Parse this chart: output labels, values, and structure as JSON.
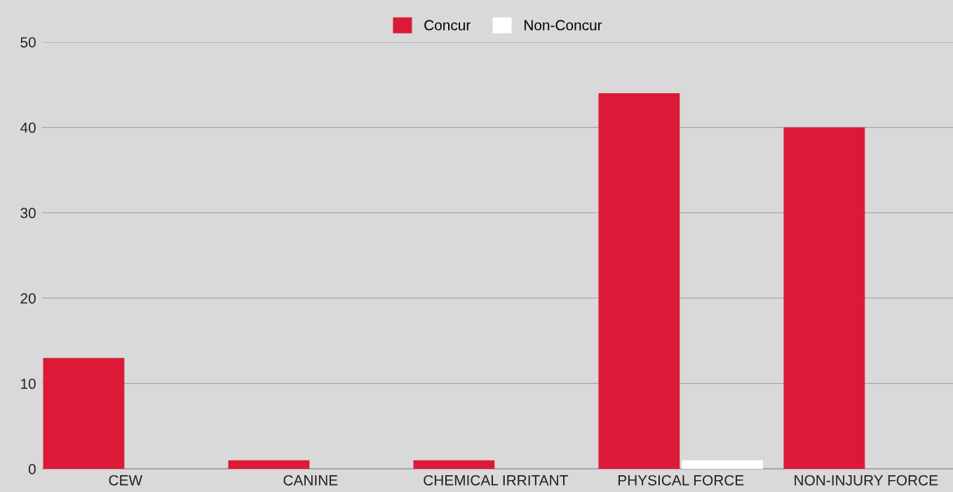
{
  "chart_data": {
    "type": "bar",
    "categories": [
      "CEW",
      "CANINE",
      "CHEMICAL IRRITANT",
      "PHYSICAL FORCE",
      "NON-INJURY FORCE"
    ],
    "series": [
      {
        "name": "Concur",
        "color": "#dc1a37",
        "values": [
          13,
          1,
          1,
          44,
          40
        ]
      },
      {
        "name": "Non-Concur",
        "color": "#ffffff",
        "values": [
          0,
          0,
          0,
          1,
          0
        ]
      }
    ],
    "ylim": [
      0,
      50
    ],
    "yticks": [
      0,
      10,
      20,
      30,
      40,
      50
    ],
    "grid": "y",
    "legend": "top"
  }
}
